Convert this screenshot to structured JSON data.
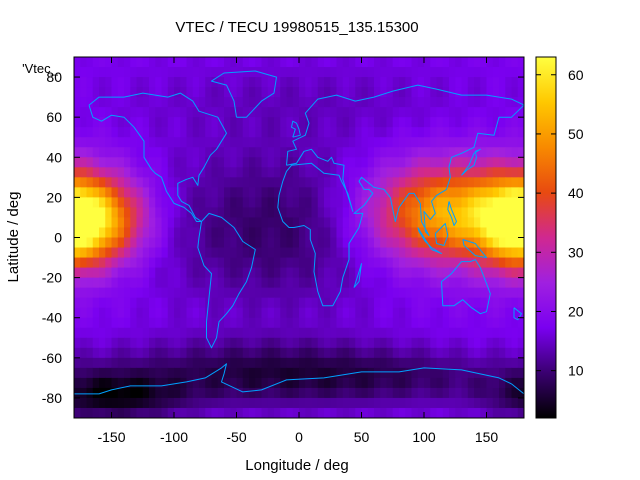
{
  "chart_data": {
    "type": "heatmap",
    "title": "VTEC / TECU 19980515_135.15300",
    "xlabel": "Longitude / deg",
    "ylabel": "Latitude / deg",
    "xlim": [
      -180,
      180
    ],
    "ylim": [
      -90,
      90
    ],
    "x_ticks": [
      -150,
      -100,
      -50,
      0,
      50,
      100,
      150
    ],
    "y_ticks": [
      -80,
      -60,
      -40,
      -20,
      0,
      20,
      40,
      60,
      80
    ],
    "colorbar": {
      "range": [
        2,
        63
      ],
      "ticks": [
        10,
        20,
        30,
        40,
        50,
        60
      ],
      "palette": [
        "#000000",
        "#3a0070",
        "#7a00f0",
        "#a020e0",
        "#d02890",
        "#e84a10",
        "#f88a00",
        "#ffc800",
        "#ffff40"
      ]
    },
    "legend_key": "'Vtec_",
    "overlay": "coastlines",
    "coastline_color": "#00a0ff",
    "field_model": {
      "background_value": 18,
      "anomalies": [
        {
          "lon": 115,
          "lat": 12,
          "sigma_lon": 42,
          "sigma_lat": 17,
          "amplitude": 34
        },
        {
          "lon": 175,
          "lat": 5,
          "sigma_lon": 20,
          "sigma_lat": 14,
          "amplitude": 18
        },
        {
          "lon": -175,
          "lat": 10,
          "sigma_lon": 30,
          "sigma_lat": 16,
          "amplitude": 32
        },
        {
          "lon": -150,
          "lat": 8,
          "sigma_lon": 25,
          "sigma_lat": 14,
          "amplitude": 10
        },
        {
          "lon": -20,
          "lat": 5,
          "sigma_lon": 70,
          "sigma_lat": 30,
          "amplitude": -9
        },
        {
          "lon": -40,
          "lat": -68,
          "sigma_lon": 90,
          "sigma_lat": 12,
          "amplitude": -10
        },
        {
          "lon": 90,
          "lat": -70,
          "sigma_lon": 80,
          "sigma_lat": 10,
          "amplitude": -6
        },
        {
          "lon": -150,
          "lat": -80,
          "sigma_lon": 40,
          "sigma_lat": 8,
          "amplitude": -12
        },
        {
          "lon": 0,
          "lat": 70,
          "sigma_lon": 120,
          "sigma_lat": 15,
          "amplitude": -3
        }
      ]
    },
    "coastlines": [
      {
        "name": "north-america",
        "points": [
          [
            -168,
            66
          ],
          [
            -160,
            70
          ],
          [
            -140,
            70
          ],
          [
            -125,
            72
          ],
          [
            -105,
            70
          ],
          [
            -95,
            72
          ],
          [
            -85,
            68
          ],
          [
            -80,
            63
          ],
          [
            -75,
            62
          ],
          [
            -65,
            60
          ],
          [
            -58,
            52
          ],
          [
            -66,
            44
          ],
          [
            -71,
            41
          ],
          [
            -76,
            35
          ],
          [
            -80,
            31
          ],
          [
            -81,
            26
          ],
          [
            -85,
            30
          ],
          [
            -90,
            29
          ],
          [
            -97,
            27
          ],
          [
            -97,
            21
          ],
          [
            -94,
            18
          ],
          [
            -88,
            16
          ],
          [
            -83,
            10
          ],
          [
            -78,
            8
          ],
          [
            -82,
            8
          ],
          [
            -86,
            12
          ],
          [
            -92,
            15
          ],
          [
            -100,
            17
          ],
          [
            -106,
            23
          ],
          [
            -110,
            30
          ],
          [
            -115,
            32
          ],
          [
            -118,
            34
          ],
          [
            -124,
            40
          ],
          [
            -124,
            48
          ],
          [
            -132,
            55
          ],
          [
            -140,
            60
          ],
          [
            -150,
            61
          ],
          [
            -158,
            58
          ],
          [
            -165,
            60
          ],
          [
            -168,
            66
          ]
        ]
      },
      {
        "name": "greenland",
        "points": [
          [
            -50,
            60
          ],
          [
            -42,
            60
          ],
          [
            -30,
            68
          ],
          [
            -20,
            72
          ],
          [
            -18,
            80
          ],
          [
            -35,
            83
          ],
          [
            -60,
            82
          ],
          [
            -70,
            78
          ],
          [
            -58,
            76
          ],
          [
            -52,
            68
          ],
          [
            -50,
            60
          ]
        ]
      },
      {
        "name": "south-america",
        "points": [
          [
            -78,
            8
          ],
          [
            -72,
            12
          ],
          [
            -62,
            10
          ],
          [
            -52,
            5
          ],
          [
            -45,
            -2
          ],
          [
            -35,
            -6
          ],
          [
            -38,
            -15
          ],
          [
            -42,
            -22
          ],
          [
            -48,
            -28
          ],
          [
            -53,
            -34
          ],
          [
            -58,
            -38
          ],
          [
            -64,
            -42
          ],
          [
            -66,
            -50
          ],
          [
            -70,
            -55
          ],
          [
            -74,
            -50
          ],
          [
            -74,
            -42
          ],
          [
            -72,
            -30
          ],
          [
            -70,
            -18
          ],
          [
            -76,
            -14
          ],
          [
            -81,
            -5
          ],
          [
            -80,
            0
          ],
          [
            -78,
            8
          ]
        ]
      },
      {
        "name": "eurasia-africa",
        "points": [
          [
            -10,
            36
          ],
          [
            -9,
            43
          ],
          [
            -2,
            44
          ],
          [
            -5,
            48
          ],
          [
            5,
            51
          ],
          [
            8,
            57
          ],
          [
            5,
            62
          ],
          [
            15,
            69
          ],
          [
            30,
            71
          ],
          [
            45,
            68
          ],
          [
            60,
            70
          ],
          [
            75,
            73
          ],
          [
            95,
            76
          ],
          [
            110,
            74
          ],
          [
            130,
            71
          ],
          [
            150,
            71
          ],
          [
            170,
            69
          ],
          [
            180,
            66
          ],
          [
            170,
            60
          ],
          [
            160,
            60
          ],
          [
            156,
            51
          ],
          [
            143,
            52
          ],
          [
            140,
            45
          ],
          [
            130,
            42
          ],
          [
            122,
            40
          ],
          [
            120,
            35
          ],
          [
            121,
            30
          ],
          [
            118,
            24
          ],
          [
            110,
            21
          ],
          [
            106,
            18
          ],
          [
            109,
            12
          ],
          [
            105,
            9
          ],
          [
            100,
            13
          ],
          [
            101,
            3
          ],
          [
            104,
            1
          ],
          [
            98,
            8
          ],
          [
            97,
            17
          ],
          [
            92,
            22
          ],
          [
            88,
            22
          ],
          [
            80,
            15
          ],
          [
            77,
            8
          ],
          [
            73,
            20
          ],
          [
            68,
            24
          ],
          [
            60,
            25
          ],
          [
            56,
            27
          ],
          [
            50,
            30
          ],
          [
            48,
            28
          ],
          [
            52,
            24
          ],
          [
            56,
            24
          ],
          [
            59,
            22
          ],
          [
            52,
            16
          ],
          [
            44,
            12
          ],
          [
            51,
            12
          ],
          [
            48,
            5
          ],
          [
            40,
            -3
          ],
          [
            40,
            -11
          ],
          [
            35,
            -20
          ],
          [
            33,
            -27
          ],
          [
            27,
            -34
          ],
          [
            19,
            -34
          ],
          [
            15,
            -27
          ],
          [
            12,
            -17
          ],
          [
            13,
            -8
          ],
          [
            9,
            -1
          ],
          [
            9,
            4
          ],
          [
            4,
            6
          ],
          [
            -4,
            5
          ],
          [
            -8,
            5
          ],
          [
            -13,
            8
          ],
          [
            -17,
            15
          ],
          [
            -16,
            21
          ],
          [
            -13,
            28
          ],
          [
            -10,
            33
          ],
          [
            -6,
            36
          ],
          [
            10,
            37
          ],
          [
            20,
            32
          ],
          [
            32,
            31
          ],
          [
            34,
            28
          ],
          [
            39,
            22
          ],
          [
            43,
            13
          ],
          [
            35,
            29
          ],
          [
            36,
            36
          ],
          [
            28,
            37
          ],
          [
            26,
            40
          ],
          [
            23,
            38
          ],
          [
            15,
            40
          ],
          [
            10,
            44
          ],
          [
            4,
            43
          ],
          [
            -2,
            37
          ],
          [
            -10,
            36
          ]
        ]
      },
      {
        "name": "madagascar",
        "points": [
          [
            44,
            -25
          ],
          [
            49,
            -15
          ],
          [
            50,
            -13
          ],
          [
            48,
            -22
          ],
          [
            44,
            -25
          ]
        ]
      },
      {
        "name": "britain",
        "points": [
          [
            -5,
            50
          ],
          [
            1,
            51
          ],
          [
            0,
            54
          ],
          [
            -2,
            57
          ],
          [
            -5,
            58
          ],
          [
            -6,
            55
          ],
          [
            -3,
            54
          ],
          [
            -5,
            50
          ]
        ]
      },
      {
        "name": "japan",
        "points": [
          [
            130,
            31
          ],
          [
            135,
            34
          ],
          [
            140,
            36
          ],
          [
            142,
            40
          ],
          [
            141,
            43
          ],
          [
            145,
            44
          ],
          [
            140,
            42
          ],
          [
            136,
            36
          ],
          [
            130,
            31
          ]
        ]
      },
      {
        "name": "sumatra-java",
        "points": [
          [
            95,
            5
          ],
          [
            100,
            0
          ],
          [
            106,
            -6
          ],
          [
            114,
            -8
          ],
          [
            106,
            -5
          ],
          [
            101,
            -2
          ],
          [
            96,
            3
          ],
          [
            95,
            5
          ]
        ]
      },
      {
        "name": "borneo",
        "points": [
          [
            109,
            2
          ],
          [
            117,
            7
          ],
          [
            119,
            1
          ],
          [
            116,
            -4
          ],
          [
            110,
            -3
          ],
          [
            109,
            2
          ]
        ]
      },
      {
        "name": "new-guinea",
        "points": [
          [
            131,
            -1
          ],
          [
            141,
            -3
          ],
          [
            150,
            -10
          ],
          [
            141,
            -9
          ],
          [
            132,
            -4
          ],
          [
            131,
            -1
          ]
        ]
      },
      {
        "name": "philippines",
        "points": [
          [
            120,
            18
          ],
          [
            122,
            14
          ],
          [
            126,
            8
          ],
          [
            124,
            6
          ],
          [
            122,
            10
          ],
          [
            119,
            14
          ],
          [
            120,
            18
          ]
        ]
      },
      {
        "name": "australia",
        "points": [
          [
            114,
            -22
          ],
          [
            122,
            -18
          ],
          [
            130,
            -12
          ],
          [
            137,
            -12
          ],
          [
            141,
            -11
          ],
          [
            145,
            -15
          ],
          [
            150,
            -23
          ],
          [
            153,
            -28
          ],
          [
            150,
            -37
          ],
          [
            145,
            -38
          ],
          [
            138,
            -35
          ],
          [
            131,
            -31
          ],
          [
            124,
            -34
          ],
          [
            115,
            -34
          ],
          [
            114,
            -22
          ]
        ]
      },
      {
        "name": "new-zealand",
        "points": [
          [
            172,
            -35
          ],
          [
            178,
            -38
          ],
          [
            175,
            -41
          ],
          [
            172,
            -40
          ],
          [
            172,
            -35
          ]
        ]
      },
      {
        "name": "antarctica",
        "points": [
          [
            -180,
            -78
          ],
          [
            -160,
            -78
          ],
          [
            -150,
            -76
          ],
          [
            -135,
            -74
          ],
          [
            -110,
            -74
          ],
          [
            -90,
            -72
          ],
          [
            -75,
            -70
          ],
          [
            -62,
            -65
          ],
          [
            -58,
            -63
          ],
          [
            -60,
            -68
          ],
          [
            -62,
            -72
          ],
          [
            -45,
            -77
          ],
          [
            -30,
            -76
          ],
          [
            -10,
            -71
          ],
          [
            20,
            -70
          ],
          [
            50,
            -67
          ],
          [
            80,
            -67
          ],
          [
            100,
            -65
          ],
          [
            130,
            -66
          ],
          [
            160,
            -70
          ],
          [
            170,
            -73
          ],
          [
            180,
            -78
          ]
        ]
      }
    ]
  }
}
